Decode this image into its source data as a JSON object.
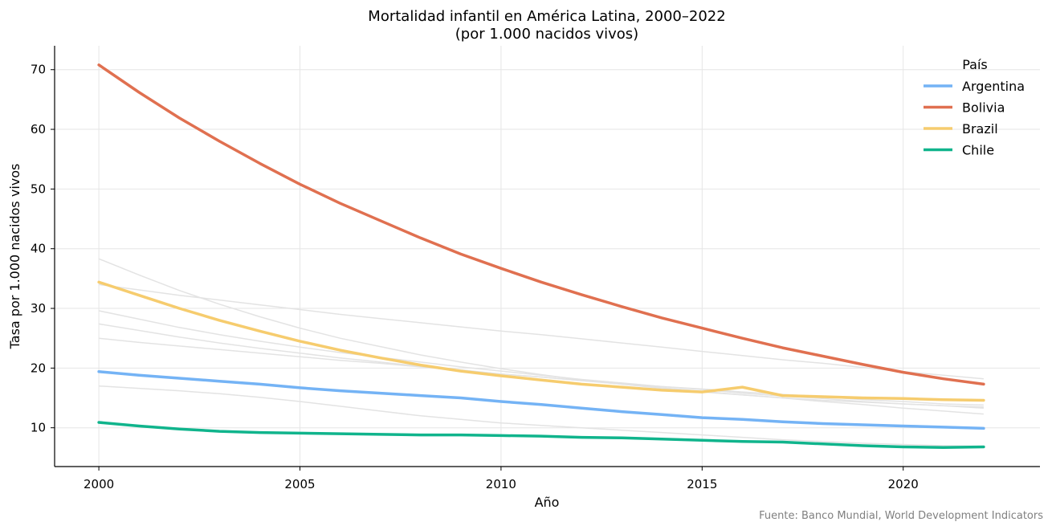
{
  "chart_data": {
    "type": "line",
    "title": "Mortalidad infantil en América Latina, 2000–2022",
    "subtitle": "(por 1.000 nacidos vivos)",
    "xlabel": "Año",
    "ylabel": "Tasa por 1.000 nacidos vivos",
    "source": "Fuente: Banco Mundial, World Development Indicators",
    "xlim": [
      1998.9,
      2023.4
    ],
    "ylim": [
      3.5,
      74
    ],
    "x_ticks": [
      2000,
      2005,
      2010,
      2015,
      2020
    ],
    "y_ticks": [
      10,
      20,
      30,
      40,
      50,
      60,
      70
    ],
    "grid": true,
    "legend": {
      "title": "País",
      "position": "top-right"
    },
    "x": [
      2000,
      2001,
      2002,
      2003,
      2004,
      2005,
      2006,
      2007,
      2008,
      2009,
      2010,
      2011,
      2012,
      2013,
      2014,
      2015,
      2016,
      2017,
      2018,
      2019,
      2020,
      2021,
      2022
    ],
    "series": [
      {
        "name": "Argentina",
        "color": "#74b3f5",
        "values": [
          19.4,
          18.8,
          18.3,
          17.8,
          17.3,
          16.7,
          16.2,
          15.8,
          15.4,
          15.0,
          14.4,
          13.9,
          13.3,
          12.7,
          12.2,
          11.7,
          11.4,
          11.0,
          10.7,
          10.5,
          10.3,
          10.1,
          9.9
        ]
      },
      {
        "name": "Bolivia",
        "color": "#e07050",
        "values": [
          70.8,
          66.2,
          61.9,
          58.0,
          54.3,
          50.8,
          47.6,
          44.7,
          41.8,
          39.1,
          36.7,
          34.4,
          32.3,
          30.3,
          28.4,
          26.7,
          25.0,
          23.4,
          22.0,
          20.6,
          19.3,
          18.2,
          17.3
        ]
      },
      {
        "name": "Brazil",
        "color": "#f6cc6e",
        "values": [
          34.4,
          32.2,
          30.0,
          28.0,
          26.2,
          24.5,
          23.0,
          21.7,
          20.5,
          19.5,
          18.7,
          18.0,
          17.3,
          16.8,
          16.3,
          16.0,
          16.8,
          15.4,
          15.2,
          15.0,
          14.9,
          14.7,
          14.6
        ]
      },
      {
        "name": "Chile",
        "color": "#10b48c",
        "values": [
          10.9,
          10.3,
          9.8,
          9.4,
          9.2,
          9.1,
          9.0,
          8.9,
          8.8,
          8.8,
          8.7,
          8.6,
          8.4,
          8.3,
          8.1,
          7.9,
          7.7,
          7.6,
          7.3,
          7.0,
          6.8,
          6.7,
          6.8
        ]
      }
    ],
    "background_series": [
      {
        "color": "#e3e3e3",
        "values": [
          38.3,
          35.6,
          33.0,
          30.7,
          28.6,
          26.7,
          25.0,
          23.6,
          22.2,
          21.0,
          19.9,
          18.9,
          18.0,
          17.3,
          16.6,
          16.0,
          15.5,
          15.0,
          14.6,
          14.3,
          14.0,
          13.7,
          13.5
        ]
      },
      {
        "color": "#e3e3e3",
        "values": [
          34.0,
          33.1,
          32.2,
          31.4,
          30.6,
          29.8,
          29.0,
          28.3,
          27.6,
          26.9,
          26.2,
          25.6,
          24.9,
          24.2,
          23.5,
          22.8,
          22.1,
          21.4,
          20.8,
          20.1,
          19.4,
          18.8,
          18.2
        ]
      },
      {
        "color": "#e3e3e3",
        "values": [
          29.6,
          28.2,
          26.8,
          25.6,
          24.5,
          23.5,
          22.6,
          21.8,
          21.0,
          20.2,
          19.5,
          18.8,
          18.1,
          17.5,
          16.9,
          16.4,
          15.8,
          15.3,
          14.9,
          14.4,
          14.0,
          13.7,
          13.3
        ]
      },
      {
        "color": "#e3e3e3",
        "values": [
          27.4,
          26.3,
          25.2,
          24.2,
          23.3,
          22.5,
          21.7,
          21.0,
          20.3,
          19.7,
          19.0,
          18.5,
          17.9,
          17.4,
          16.9,
          16.5,
          16.0,
          15.6,
          15.2,
          14.7,
          14.4,
          14.0,
          13.8
        ]
      },
      {
        "color": "#e3e3e3",
        "values": [
          25.0,
          24.3,
          23.7,
          23.1,
          22.5,
          21.9,
          21.3,
          20.8,
          20.2,
          19.6,
          19.0,
          18.5,
          17.9,
          17.3,
          16.7,
          16.1,
          15.5,
          15.0,
          14.4,
          13.9,
          13.3,
          12.8,
          12.3
        ]
      },
      {
        "color": "#e3e3e3",
        "values": [
          17.0,
          16.6,
          16.2,
          15.7,
          15.1,
          14.4,
          13.6,
          12.8,
          12.0,
          11.4,
          10.8,
          10.4,
          10.0,
          9.6,
          9.2,
          8.8,
          8.4,
          8.0,
          7.7,
          7.4,
          7.2,
          7.0,
          6.9
        ]
      }
    ]
  }
}
